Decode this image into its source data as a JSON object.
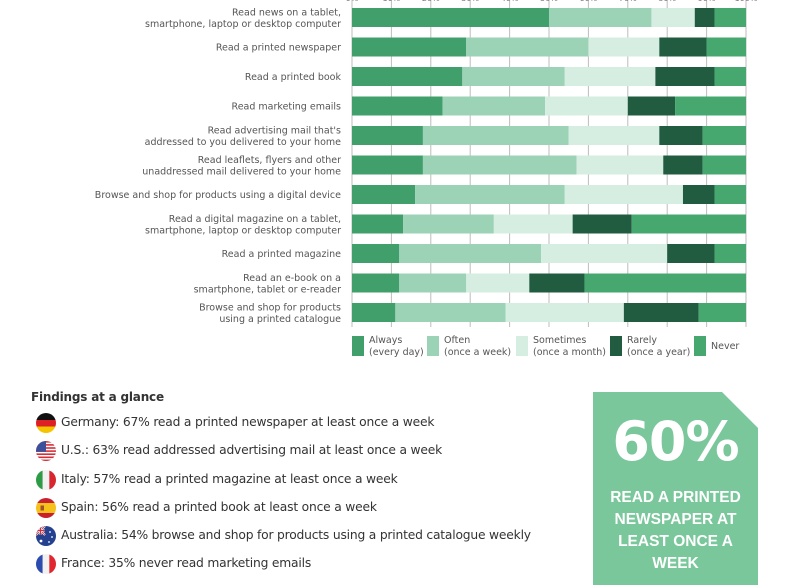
{
  "chart_data": {
    "type": "bar",
    "orientation": "horizontal",
    "stacked": true,
    "percent": true,
    "title": "",
    "xlabel": "",
    "ylabel": "",
    "xlim": [
      0,
      100
    ],
    "x_ticks": [
      "0%",
      "10%",
      "20%",
      "30%",
      "40%",
      "50%",
      "60%",
      "70%",
      "80%",
      "90%",
      "100%"
    ],
    "grid": true,
    "legend_position": "bottom",
    "categories": [
      [
        "Read news on a tablet,",
        "smartphone, laptop or desktop computer"
      ],
      [
        "Read a printed newspaper"
      ],
      [
        "Read a printed book"
      ],
      [
        "Read marketing emails"
      ],
      [
        "Read advertising mail that's",
        "addressed to you delivered to your home"
      ],
      [
        "Read leaflets, flyers and other",
        "unaddressed mail delivered to your home"
      ],
      [
        "Browse and shop for products using a digital device"
      ],
      [
        "Read a digital magazine on a tablet,",
        "smartphone, laptop or desktop computer"
      ],
      [
        "Read a printed magazine"
      ],
      [
        "Read an e-book on a",
        "smartphone, tablet or e-reader"
      ],
      [
        "Browse and shop for products",
        "using a printed catalogue"
      ]
    ],
    "series": [
      {
        "name": "Always",
        "sub": "(every day)",
        "color": "#419F6C",
        "values": [
          50,
          29,
          28,
          23,
          18,
          18,
          16,
          13,
          12,
          12,
          11
        ]
      },
      {
        "name": "Often",
        "sub": "(once a week)",
        "color": "#9CD3B6",
        "values": [
          26,
          31,
          26,
          26,
          37,
          39,
          38,
          23,
          36,
          17,
          28
        ]
      },
      {
        "name": "Sometimes",
        "sub": "(once a month)",
        "color": "#D6EDE2",
        "values": [
          11,
          18,
          23,
          21,
          23,
          22,
          30,
          20,
          32,
          16,
          30
        ]
      },
      {
        "name": "Rarely",
        "sub": "(once a year)",
        "color": "#215C40",
        "values": [
          5,
          12,
          15,
          12,
          11,
          10,
          8,
          15,
          12,
          14,
          19
        ]
      },
      {
        "name": "Never",
        "sub": "",
        "color": "#46A86F",
        "values": [
          8,
          10,
          8,
          18,
          11,
          11,
          8,
          29,
          8,
          41,
          12
        ]
      }
    ]
  },
  "findings": {
    "title": "Findings at a glance",
    "items": [
      {
        "flag": "germany-flag",
        "text": "Germany: 67% read a printed newspaper at least once a week"
      },
      {
        "flag": "usa-flag",
        "text": "U.S.: 63% read addressed advertising mail at least once a week"
      },
      {
        "flag": "italy-flag",
        "text": "Italy: 57% read a printed magazine at least once a week"
      },
      {
        "flag": "spain-flag",
        "text": "Spain: 56% read a printed book at least once a week"
      },
      {
        "flag": "australia-flag",
        "text": "Australia: 54% browse and shop for products using a printed catalogue weekly"
      },
      {
        "flag": "france-flag",
        "text": "France: 35% never read marketing emails"
      }
    ]
  },
  "callout": {
    "value": "60%",
    "text": "READ A PRINTED NEWSPAPER AT LEAST ONCE A WEEK",
    "color": "#7AC79C"
  }
}
